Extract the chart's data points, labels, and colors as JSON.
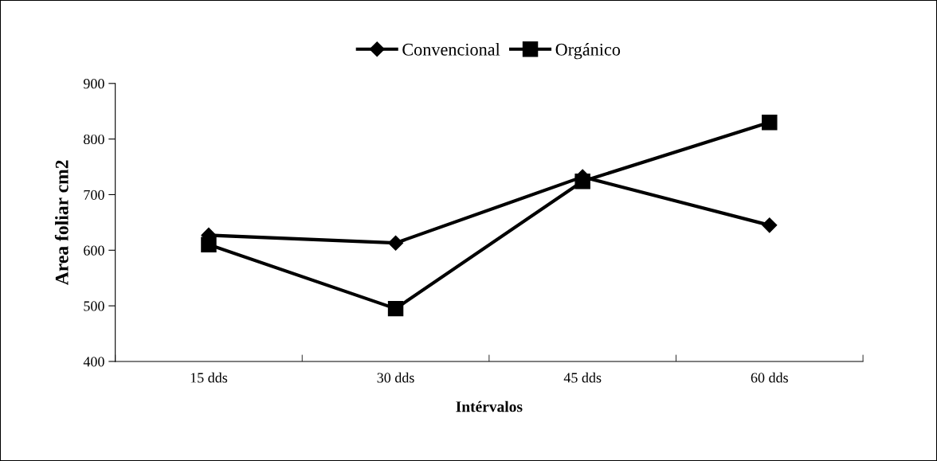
{
  "chart_data": {
    "type": "line",
    "xlabel": "Intérvalos",
    "ylabel": "Area foliar cm2",
    "categories": [
      "15 dds",
      "30 dds",
      "45 dds",
      "60 dds"
    ],
    "series": [
      {
        "name": "Convencional",
        "color": "#000000",
        "marker": "diamond",
        "values": [
          627,
          613,
          732,
          645
        ]
      },
      {
        "name": "Orgánico",
        "color": "#000000",
        "marker": "square",
        "values": [
          610,
          495,
          724,
          830
        ]
      }
    ],
    "ylim": [
      400,
      900
    ],
    "yticks": [
      400,
      500,
      600,
      700,
      800,
      900
    ],
    "grid": false,
    "legend": "top",
    "line_style": "solid"
  }
}
